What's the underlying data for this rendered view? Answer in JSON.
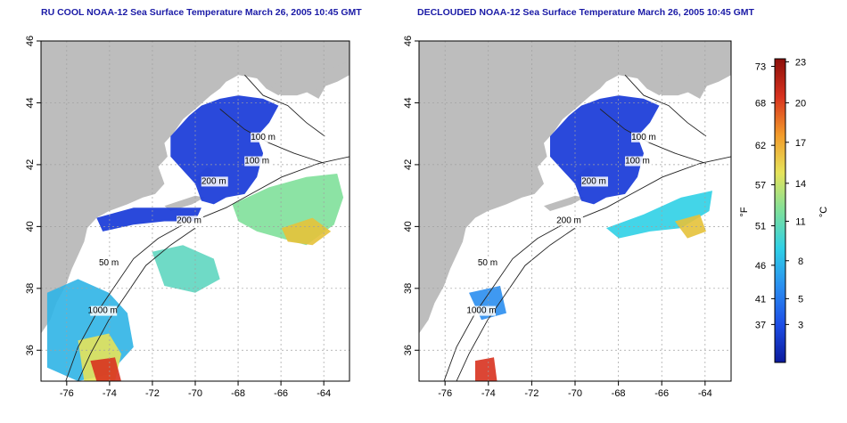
{
  "maps": [
    {
      "id": "left",
      "title": "RU COOL NOAA-12 Sea Surface Temperature March 26, 2005 10:45 GMT",
      "contour_labels": [
        "100 m",
        "100 m",
        "200 m",
        "50 m",
        "1000 m",
        "200 m"
      ]
    },
    {
      "id": "right",
      "title": "DECLOUDED NOAA-12 Sea Surface Temperature March 26, 2005 10:45 GMT",
      "contour_labels": [
        "100 m",
        "100 m",
        "200 m",
        "50 m",
        "1000 m",
        "200 m"
      ]
    }
  ],
  "axes": {
    "x_ticks": [
      "-76",
      "-74",
      "-72",
      "-70",
      "-68",
      "-66",
      "-64"
    ],
    "y_ticks": [
      "36",
      "38",
      "40",
      "42",
      "44",
      "46"
    ],
    "lon_range": [
      -77.2,
      -62.8
    ],
    "lat_range": [
      35,
      46
    ]
  },
  "colorbar": {
    "fahrenheit_unit": "°F",
    "celsius_unit": "°C",
    "fahrenheit_ticks": [
      "73",
      "68",
      "62",
      "57",
      "51",
      "46",
      "41",
      "37"
    ],
    "celsius_ticks": [
      "23",
      "20",
      "17",
      "14",
      "11",
      "8",
      "5",
      "3"
    ],
    "gradient": [
      "#0b1a9c",
      "#1d4ee6",
      "#2a8ef0",
      "#2fd0e6",
      "#7fe09a",
      "#e6e35a",
      "#f29a2a",
      "#d8321f",
      "#8c0f0a"
    ]
  },
  "colors": {
    "land": "#bdbdbd",
    "cold": "#1f3fd9",
    "grid": "#a0a0a0"
  }
}
